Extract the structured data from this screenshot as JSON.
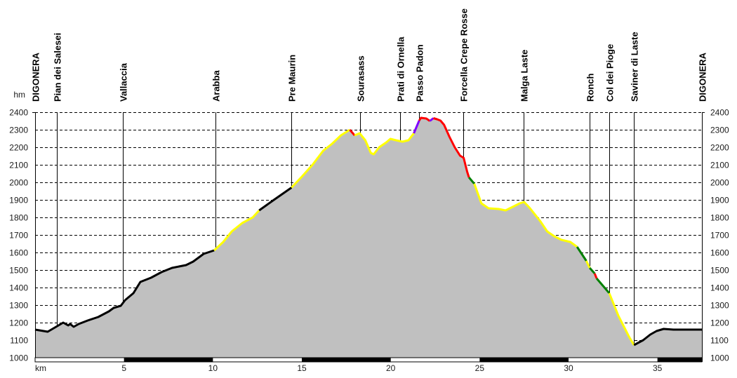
{
  "chart_data": {
    "type": "area",
    "title": "",
    "xlabel": "km",
    "ylabel": "hm",
    "xlim": [
      0,
      37.5
    ],
    "ylim": [
      1000,
      2400
    ],
    "x_ticks": [
      5,
      10,
      15,
      20,
      25,
      30,
      35
    ],
    "y_ticks": [
      1000,
      1100,
      1200,
      1300,
      1400,
      1500,
      1600,
      1700,
      1800,
      1900,
      2000,
      2100,
      2200,
      2300,
      2400
    ],
    "grid": true,
    "fill_color": "#c0c0c0",
    "waypoints": [
      {
        "name": "DIGONERA",
        "km": 0
      },
      {
        "name": "Pian dei Salesei",
        "km": 1.22
      },
      {
        "name": "Vallaccia",
        "km": 4.93
      },
      {
        "name": "Arabba",
        "km": 10.15
      },
      {
        "name": "Pre Maurin",
        "km": 14.41
      },
      {
        "name": "Sourasass",
        "km": 18.28
      },
      {
        "name": "Prati di Ornella",
        "km": 20.53
      },
      {
        "name": "Passo Padon",
        "km": 21.6
      },
      {
        "name": "Forcella Crepe Rosse",
        "km": 24.08
      },
      {
        "name": "Malga Laste",
        "km": 27.48
      },
      {
        "name": "Ronch",
        "km": 31.19
      },
      {
        "name": "Col dei Pioge",
        "km": 32.29
      },
      {
        "name": "Saviner di Laste",
        "km": 33.68
      },
      {
        "name": "DIGONERA",
        "km": 37.5
      }
    ],
    "segments": [
      {
        "color": "#000000",
        "points": [
          [
            0,
            1160
          ],
          [
            0.71,
            1148
          ],
          [
            1.18,
            1176
          ],
          [
            1.58,
            1200
          ],
          [
            1.86,
            1184
          ],
          [
            1.97,
            1192
          ],
          [
            2.17,
            1176
          ],
          [
            2.45,
            1192
          ],
          [
            2.96,
            1212
          ],
          [
            3.55,
            1232
          ],
          [
            4.15,
            1264
          ],
          [
            4.42,
            1284
          ],
          [
            4.82,
            1296
          ],
          [
            5.06,
            1328
          ],
          [
            5.53,
            1368
          ],
          [
            5.92,
            1432
          ],
          [
            6.52,
            1456
          ],
          [
            7.11,
            1488
          ],
          [
            7.7,
            1512
          ],
          [
            8.49,
            1528
          ],
          [
            8.89,
            1548
          ],
          [
            9.48,
            1592
          ],
          [
            10.07,
            1612
          ]
        ]
      },
      {
        "color": "#ffff00",
        "points": [
          [
            10.07,
            1612
          ],
          [
            10.58,
            1660
          ],
          [
            11.06,
            1720
          ],
          [
            11.65,
            1768
          ],
          [
            12.24,
            1800
          ],
          [
            12.6,
            1840
          ]
        ]
      },
      {
        "color": "#000000",
        "points": [
          [
            12.6,
            1840
          ],
          [
            13.43,
            1900
          ],
          [
            14.42,
            1970
          ]
        ]
      },
      {
        "color": "#ffff00",
        "points": [
          [
            14.42,
            1970
          ],
          [
            15.0,
            2032
          ],
          [
            15.6,
            2100
          ],
          [
            16.2,
            2180
          ],
          [
            16.7,
            2220
          ],
          [
            17.2,
            2268
          ],
          [
            17.7,
            2300
          ]
        ]
      },
      {
        "color": "#ff0000",
        "points": [
          [
            17.7,
            2300
          ],
          [
            17.97,
            2268
          ]
        ]
      },
      {
        "color": "#ffff00",
        "points": [
          [
            17.97,
            2268
          ],
          [
            18.25,
            2280
          ],
          [
            18.57,
            2240
          ],
          [
            18.88,
            2168
          ],
          [
            19.04,
            2160
          ],
          [
            19.35,
            2200
          ],
          [
            19.75,
            2228
          ],
          [
            19.98,
            2248
          ],
          [
            20.3,
            2240
          ],
          [
            20.66,
            2232
          ],
          [
            21.0,
            2240
          ],
          [
            21.3,
            2280
          ]
        ]
      },
      {
        "color": "#8000ff",
        "points": [
          [
            21.3,
            2280
          ],
          [
            21.6,
            2352
          ]
        ]
      },
      {
        "color": "#ff0000",
        "points": [
          [
            21.6,
            2352
          ],
          [
            21.7,
            2368
          ],
          [
            22.0,
            2364
          ],
          [
            22.2,
            2350
          ]
        ]
      },
      {
        "color": "#8000ff",
        "points": [
          [
            22.2,
            2350
          ],
          [
            22.4,
            2366
          ]
        ]
      },
      {
        "color": "#ff0000",
        "points": [
          [
            22.4,
            2366
          ],
          [
            22.6,
            2360
          ],
          [
            22.8,
            2352
          ],
          [
            23.0,
            2328
          ],
          [
            23.3,
            2260
          ],
          [
            23.6,
            2200
          ],
          [
            23.9,
            2152
          ],
          [
            24.1,
            2140
          ],
          [
            24.3,
            2060
          ],
          [
            24.4,
            2028
          ]
        ]
      },
      {
        "color": "#008000",
        "points": [
          [
            24.4,
            2028
          ],
          [
            24.7,
            1992
          ]
        ]
      },
      {
        "color": "#ffff00",
        "points": [
          [
            24.7,
            1992
          ],
          [
            25.1,
            1880
          ],
          [
            25.5,
            1852
          ],
          [
            26.07,
            1848
          ],
          [
            26.46,
            1840
          ],
          [
            26.86,
            1860
          ],
          [
            27.25,
            1880
          ],
          [
            27.5,
            1888
          ],
          [
            27.8,
            1856
          ],
          [
            28.4,
            1780
          ],
          [
            28.8,
            1720
          ],
          [
            29.2,
            1692
          ],
          [
            29.6,
            1672
          ],
          [
            30.1,
            1660
          ],
          [
            30.48,
            1632
          ]
        ]
      },
      {
        "color": "#008000",
        "points": [
          [
            30.48,
            1632
          ],
          [
            31.0,
            1552
          ]
        ]
      },
      {
        "color": "#ffff00",
        "points": [
          [
            31.0,
            1552
          ],
          [
            31.19,
            1512
          ]
        ]
      },
      {
        "color": "#008000",
        "points": [
          [
            31.19,
            1512
          ],
          [
            31.47,
            1480
          ]
        ]
      },
      {
        "color": "#ff0000",
        "points": [
          [
            31.47,
            1480
          ],
          [
            31.58,
            1452
          ]
        ]
      },
      {
        "color": "#008000",
        "points": [
          [
            31.58,
            1452
          ],
          [
            32.29,
            1368
          ]
        ]
      },
      {
        "color": "#ffff00",
        "points": [
          [
            32.29,
            1368
          ],
          [
            32.8,
            1240
          ],
          [
            33.4,
            1120
          ],
          [
            33.68,
            1072
          ]
        ]
      },
      {
        "color": "#000000",
        "points": [
          [
            33.68,
            1072
          ],
          [
            34.2,
            1100
          ],
          [
            34.6,
            1132
          ],
          [
            34.95,
            1152
          ],
          [
            35.35,
            1164
          ],
          [
            35.9,
            1160
          ],
          [
            37.5,
            1160
          ]
        ]
      }
    ]
  }
}
